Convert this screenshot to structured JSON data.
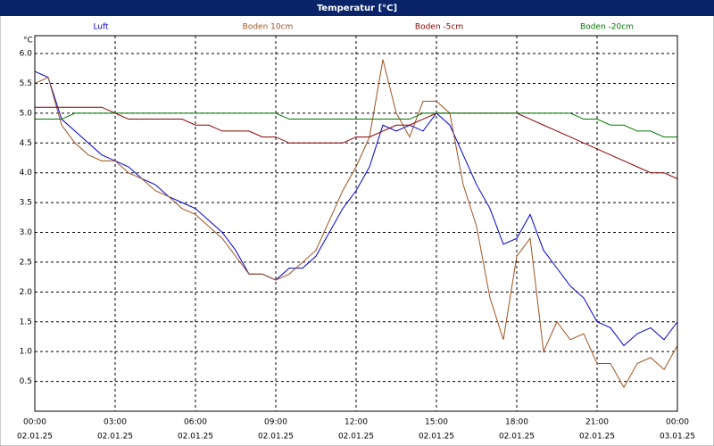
{
  "chart_data": {
    "type": "line",
    "title": "Temperatur [°C]",
    "y_unit": "°C",
    "x": [
      0,
      0.5,
      1,
      1.5,
      2,
      2.5,
      3,
      3.5,
      4,
      4.5,
      5,
      5.5,
      6,
      6.5,
      7,
      7.5,
      8,
      8.5,
      9,
      9.5,
      10,
      10.5,
      11,
      11.5,
      12,
      12.5,
      13,
      13.5,
      14,
      14.5,
      15,
      15.5,
      16,
      16.5,
      17,
      17.5,
      18,
      18.5,
      19,
      19.5,
      20,
      20.5,
      21,
      21.5,
      22,
      22.5,
      23,
      23.5,
      24
    ],
    "xlim": [
      0,
      24
    ],
    "xticks": [
      {
        "value": 0,
        "label": "00:00"
      },
      {
        "value": 3,
        "label": "03:00"
      },
      {
        "value": 6,
        "label": "06:00"
      },
      {
        "value": 9,
        "label": "09:00"
      },
      {
        "value": 12,
        "label": "12:00"
      },
      {
        "value": 15,
        "label": "15:00"
      },
      {
        "value": 18,
        "label": "18:00"
      },
      {
        "value": 21,
        "label": "21:00"
      },
      {
        "value": 24,
        "label": "00:00"
      }
    ],
    "xtick_dates": [
      "02.01.25",
      "02.01.25",
      "02.01.25",
      "02.01.25",
      "02.01.25",
      "02.01.25",
      "02.01.25",
      "02.01.25",
      "03.01.25"
    ],
    "ylim": [
      0,
      6.3
    ],
    "yticks": [
      0.5,
      {
        "value": 1,
        "label": "1.0"
      },
      1.5,
      {
        "value": 2,
        "label": "2.0"
      },
      2.5,
      {
        "value": 3,
        "label": "3.0"
      },
      3.5,
      {
        "value": 4,
        "label": "4.0"
      },
      4.5,
      {
        "value": 5,
        "label": "5.0"
      },
      5.5,
      {
        "value": 6,
        "label": "6.0"
      }
    ],
    "grid": true,
    "series": [
      {
        "name": "Luft",
        "color": "#0000cc",
        "values": [
          5.7,
          5.6,
          4.9,
          4.7,
          4.5,
          4.3,
          4.2,
          4.1,
          3.9,
          3.8,
          3.6,
          3.5,
          3.4,
          3.2,
          3.0,
          2.7,
          2.3,
          2.3,
          2.2,
          2.4,
          2.4,
          2.6,
          3.0,
          3.4,
          3.7,
          4.1,
          4.8,
          4.7,
          4.8,
          4.7,
          5.0,
          4.8,
          4.3,
          3.8,
          3.4,
          2.8,
          2.9,
          3.3,
          2.7,
          2.4,
          2.1,
          1.9,
          1.5,
          1.4,
          1.1,
          1.3,
          1.4,
          1.2,
          1.5
        ]
      },
      {
        "name": "Boden 10cm",
        "color": "#a0521e",
        "values": [
          5.5,
          5.6,
          4.8,
          4.5,
          4.3,
          4.2,
          4.2,
          4.0,
          3.9,
          3.7,
          3.6,
          3.4,
          3.3,
          3.1,
          2.9,
          2.6,
          2.3,
          2.3,
          2.2,
          2.3,
          2.5,
          2.7,
          3.2,
          3.7,
          4.1,
          4.6,
          5.9,
          5.0,
          4.6,
          5.2,
          5.2,
          5.0,
          3.8,
          3.1,
          1.9,
          1.2,
          2.6,
          2.9,
          1.0,
          1.5,
          1.2,
          1.3,
          0.8,
          0.8,
          0.4,
          0.8,
          0.9,
          0.7,
          1.1
        ]
      },
      {
        "name": "Boden -5cm",
        "color": "#8b0000",
        "values": [
          5.1,
          5.1,
          5.1,
          5.1,
          5.1,
          5.1,
          5.0,
          4.9,
          4.9,
          4.9,
          4.9,
          4.9,
          4.8,
          4.8,
          4.7,
          4.7,
          4.7,
          4.6,
          4.6,
          4.5,
          4.5,
          4.5,
          4.5,
          4.5,
          4.6,
          4.6,
          4.7,
          4.8,
          4.8,
          4.9,
          5.0,
          5.0,
          5.0,
          5.0,
          5.0,
          5.0,
          5.0,
          4.9,
          4.8,
          4.7,
          4.6,
          4.5,
          4.4,
          4.3,
          4.2,
          4.1,
          4.0,
          4.0,
          3.9
        ]
      },
      {
        "name": "Boden -20cm",
        "color": "#007a00",
        "values": [
          4.9,
          4.9,
          4.9,
          5.0,
          5.0,
          5.0,
          5.0,
          5.0,
          5.0,
          5.0,
          5.0,
          5.0,
          5.0,
          5.0,
          5.0,
          5.0,
          5.0,
          5.0,
          5.0,
          4.9,
          4.9,
          4.9,
          4.9,
          4.9,
          4.9,
          4.9,
          4.9,
          4.9,
          4.9,
          5.0,
          5.0,
          5.0,
          5.0,
          5.0,
          5.0,
          5.0,
          5.0,
          5.0,
          5.0,
          5.0,
          5.0,
          4.9,
          4.9,
          4.8,
          4.8,
          4.7,
          4.7,
          4.6,
          4.6
        ]
      }
    ]
  }
}
